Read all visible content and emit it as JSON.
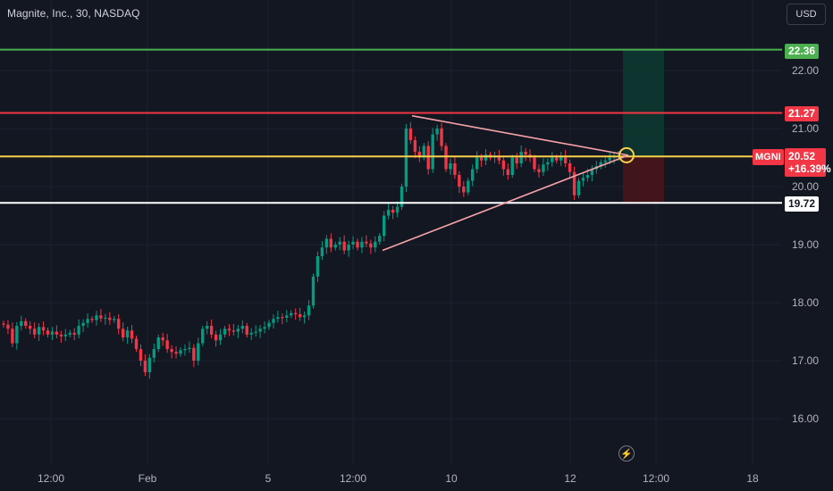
{
  "header": {
    "title": "Magnite, Inc., 30, NASDAQ",
    "currency": "USD"
  },
  "colors": {
    "up": "#089981",
    "down": "#f23645",
    "target": "#4caf50",
    "stop": "#f23645",
    "entry": "#f7d14a",
    "support": "#ffffff",
    "triangle": "#f7a3a8"
  },
  "y_axis": {
    "ticks": [
      "22.00",
      "21.00",
      "20.00",
      "19.00",
      "18.00",
      "17.00",
      "16.00"
    ]
  },
  "x_axis": {
    "ticks": [
      "12:00",
      "Feb",
      "5",
      "12:00",
      "10",
      "12",
      "12:00",
      "18"
    ]
  },
  "levels": {
    "target": "22.36",
    "stop": "21.27",
    "support": "19.72"
  },
  "last_price": {
    "symbol": "MGNI",
    "price": "20.52",
    "change": "+16.39%"
  },
  "chart_data": {
    "type": "candlestick",
    "title": "Magnite, Inc., 30, NASDAQ",
    "ylim": [
      15.6,
      23.0
    ],
    "horizontal_levels": [
      22.36,
      21.27,
      20.52,
      19.72
    ],
    "close_series": [
      17.62,
      17.55,
      17.3,
      17.6,
      17.68,
      17.6,
      17.55,
      17.45,
      17.58,
      17.52,
      17.45,
      17.5,
      17.45,
      17.42,
      17.45,
      17.48,
      17.45,
      17.6,
      17.65,
      17.72,
      17.7,
      17.78,
      17.73,
      17.74,
      17.7,
      17.72,
      17.55,
      17.4,
      17.52,
      17.38,
      17.2,
      17.0,
      16.8,
      17.05,
      17.2,
      17.4,
      17.35,
      17.2,
      17.15,
      17.12,
      17.18,
      17.2,
      17.22,
      17.0,
      17.3,
      17.55,
      17.6,
      17.45,
      17.35,
      17.45,
      17.55,
      17.52,
      17.5,
      17.55,
      17.6,
      17.45,
      17.48,
      17.5,
      17.55,
      17.58,
      17.65,
      17.72,
      17.75,
      17.74,
      17.78,
      17.82,
      17.8,
      17.75,
      17.78,
      17.95,
      18.45,
      18.8,
      18.95,
      19.1,
      18.95,
      19.0,
      19.05,
      18.9,
      19.0,
      19.05,
      18.95,
      19.05,
      19.02,
      18.95,
      19.05,
      19.15,
      19.5,
      19.6,
      19.55,
      19.65,
      20.0,
      21.0,
      20.8,
      20.6,
      20.5,
      20.7,
      20.3,
      20.9,
      21.0,
      20.7,
      20.3,
      20.4,
      20.2,
      20.0,
      19.9,
      20.1,
      20.3,
      20.5,
      20.45,
      20.55,
      20.5,
      20.52,
      20.45,
      20.3,
      20.2,
      20.5,
      20.4,
      20.6,
      20.55,
      20.5,
      20.3,
      20.25,
      20.38,
      20.42,
      20.5,
      20.45,
      20.52,
      20.4,
      20.25,
      19.85,
      20.1,
      20.15,
      20.2,
      20.3,
      20.35,
      20.42,
      20.45,
      20.5,
      20.52,
      20.52
    ]
  }
}
